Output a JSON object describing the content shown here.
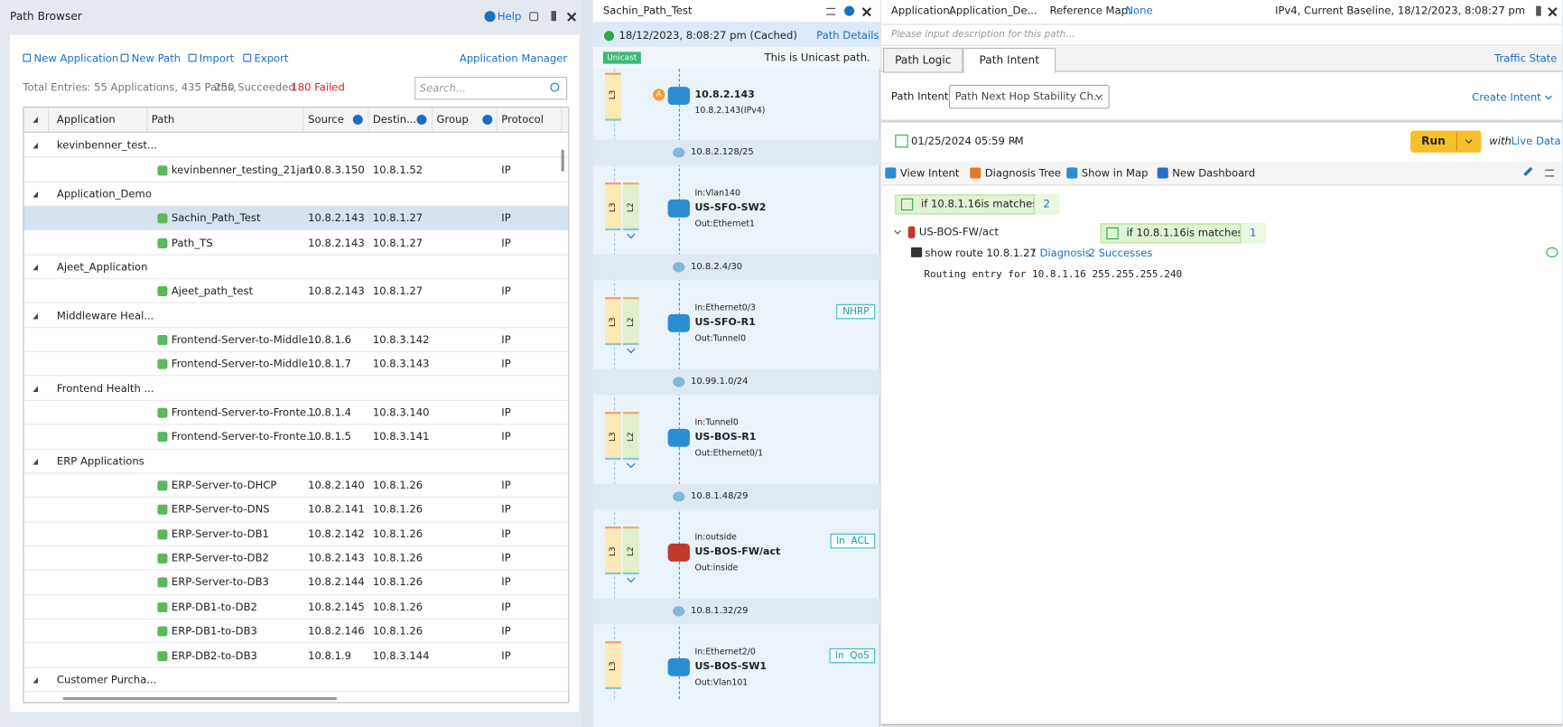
{
  "left": {
    "title": "Path Browser",
    "help": "Help",
    "toolbar": [
      "New Application",
      "New Path",
      "Import",
      "Export"
    ],
    "manager": "Application Manager",
    "summary": "Total Entries: 55 Applications, 435 Paths,",
    "succeeded": "250 Succeeded",
    "failed": "180 Failed",
    "search": "Search...",
    "columns": [
      "Application",
      "Path",
      "Source",
      "Destin...",
      "Group",
      "Protocol"
    ],
    "rows": [
      {
        "group": "kevinbenner_test..."
      },
      {
        "path": "kevinbenner_testing_21jan",
        "source": "10.8.3.150",
        "destination": "10.8.1.52",
        "protocol": "IP"
      },
      {
        "group": "Application_Demo"
      },
      {
        "path": "Sachin_Path_Test",
        "source": "10.8.2.143",
        "destination": "10.8.1.27",
        "protocol": "IP"
      },
      {
        "path": "Path_TS",
        "source": "10.8.2.143",
        "destination": "10.8.1.27",
        "protocol": "IP"
      },
      {
        "group": "Ajeet_Application"
      },
      {
        "path": "Ajeet_path_test",
        "source": "10.8.2.143",
        "destination": "10.8.1.27",
        "protocol": "IP"
      },
      {
        "group": "Middleware Heal..."
      },
      {
        "path": "Frontend-Server-to-Middle...",
        "source": "10.8.1.6",
        "destination": "10.8.3.142",
        "protocol": "IP"
      },
      {
        "path": "Frontend-Server-to-Middle...",
        "source": "10.8.1.7",
        "destination": "10.8.3.143",
        "protocol": "IP"
      },
      {
        "group": "Frontend Health ..."
      },
      {
        "path": "Frontend-Server-to-Fronte...",
        "source": "10.8.1.4",
        "destination": "10.8.3.140",
        "protocol": "IP"
      },
      {
        "path": "Frontend-Server-to-Fronte...",
        "source": "10.8.1.5",
        "destination": "10.8.3.141",
        "protocol": "IP"
      },
      {
        "group": "ERP Applications"
      },
      {
        "path": "ERP-Server-to-DHCP",
        "source": "10.8.2.140",
        "destination": "10.8.1.26",
        "protocol": "IP"
      },
      {
        "path": "ERP-Server-to-DNS",
        "source": "10.8.2.141",
        "destination": "10.8.1.26",
        "protocol": "IP"
      },
      {
        "path": "ERP-Server-to-DB1",
        "source": "10.8.2.142",
        "destination": "10.8.1.26",
        "protocol": "IP"
      },
      {
        "path": "ERP-Server-to-DB2",
        "source": "10.8.2.143",
        "destination": "10.8.1.26",
        "protocol": "IP"
      },
      {
        "path": "ERP-Server-to-DB3",
        "source": "10.8.2.144",
        "destination": "10.8.1.26",
        "protocol": "IP"
      },
      {
        "path": "ERP-DB1-to-DB2",
        "source": "10.8.2.145",
        "destination": "10.8.1.26",
        "protocol": "IP"
      },
      {
        "path": "ERP-DB1-to-DB3",
        "source": "10.8.2.146",
        "destination": "10.8.1.26",
        "protocol": "IP"
      },
      {
        "path": "ERP-DB2-to-DB3",
        "source": "10.8.1.9",
        "destination": "10.8.3.144",
        "protocol": "IP"
      },
      {
        "group": "Customer Purcha..."
      }
    ]
  },
  "middle": {
    "title": "Sachin_Path_Test",
    "status": "18/12/2023, 8:08:27 pm (Cached)",
    "details": "Path Details",
    "badge": "Unicast",
    "note": "This is Unicast path.",
    "hops": [
      {
        "layers": [
          "L3"
        ],
        "marker": "A",
        "name": "10.8.2.143",
        "sub": "10.8.2.143(IPv4)"
      },
      {
        "subnet": "10.8.2.128/25"
      },
      {
        "layers": [
          "L3",
          "L2"
        ],
        "in": "In:Vlan140",
        "name": "US-SFO-SW2",
        "out": "Out:Ethernet1"
      },
      {
        "subnet": "10.8.2.4/30"
      },
      {
        "layers": [
          "L3",
          "L2"
        ],
        "in": "In:Ethernet0/3",
        "name": "US-SFO-R1",
        "out": "Out:Tunnel0",
        "tag": "NHRP"
      },
      {
        "subnet": "10.99.1.0/24"
      },
      {
        "layers": [
          "L3",
          "L2"
        ],
        "in": "In:Tunnel0",
        "name": "US-BOS-R1",
        "out": "Out:Ethernet0/1"
      },
      {
        "subnet": "10.8.1.48/29"
      },
      {
        "layers": [
          "L3",
          "L2"
        ],
        "in": "In:outside",
        "name": "US-BOS-FW/act",
        "out": "Out:inside",
        "tag": "In  ACL"
      },
      {
        "subnet": "10.8.1.32/29"
      },
      {
        "layers": [
          "L3"
        ],
        "in": "In:Ethernet2/0",
        "name": "US-BOS-SW1",
        "out": "Out:Vlan101",
        "tag": "In  QoS"
      }
    ]
  },
  "right": {
    "app_label": "Application:",
    "app": "Application_De...",
    "ref_label": "Reference Map:",
    "ref": "None",
    "baseline": "IPv4, Current Baseline, 18/12/2023, 8:08:27 pm",
    "description": "Please input description for this path...",
    "tabs": [
      "Path Logic",
      "Path Intent"
    ],
    "traffic": "Traffic State",
    "intent_label": "Path Intent:",
    "intent": "Path Next Hop Stability Ch...",
    "create": "Create Intent",
    "date": "01/25/2024 05:59 PM",
    "run": "Run",
    "with": "with",
    "live": "Live Data",
    "tools": [
      "View Intent",
      "Diagnosis Tree",
      "Show in Map",
      "New Dashboard"
    ],
    "cond1": {
      "text": "if 10.8.1.16is matches",
      "count": "2"
    },
    "device": "US-BOS-FW/act",
    "cond2": {
      "text": "if 10.8.1.16is matches",
      "count": "1"
    },
    "command": "show route 10.8.1.27",
    "diagnosis": "1 Diagnosis",
    "successes": "2 Successes",
    "output": "Routing entry for 10.8.1.16 255.255.255.240"
  }
}
